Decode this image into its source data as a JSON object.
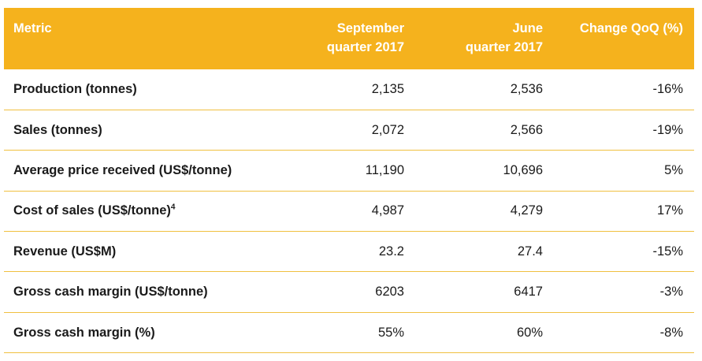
{
  "headers": {
    "metric": "Metric",
    "sep_line1": "September",
    "sep_line2": "quarter 2017",
    "jun_line1": "June",
    "jun_line2": "quarter 2017",
    "change": "Change QoQ (%)"
  },
  "rows": [
    {
      "metric": "Production (tonnes)",
      "sup": "",
      "sep": "2,135",
      "jun": "2,536",
      "change": "-16%"
    },
    {
      "metric": "Sales (tonnes)",
      "sup": "",
      "sep": "2,072",
      "jun": "2,566",
      "change": "-19%"
    },
    {
      "metric": "Average price received (US$/tonne)",
      "sup": "",
      "sep": "11,190",
      "jun": "10,696",
      "change": "5%"
    },
    {
      "metric": "Cost of sales (US$/tonne)",
      "sup": "4",
      "sep": "4,987",
      "jun": "4,279",
      "change": "17%"
    },
    {
      "metric": "Revenue (US$M)",
      "sup": "",
      "sep": "23.2",
      "jun": "27.4",
      "change": "-15%"
    },
    {
      "metric": "Gross cash margin (US$/tonne)",
      "sup": "",
      "sep": "6203",
      "jun": "6417",
      "change": "-3%"
    },
    {
      "metric": "Gross cash margin (%)",
      "sup": "",
      "sep": "55%",
      "jun": "60%",
      "change": "-8%"
    }
  ],
  "colors": {
    "header_bg": "#f5b21d",
    "header_text": "#ffffff",
    "row_divider": "#f0c040"
  }
}
